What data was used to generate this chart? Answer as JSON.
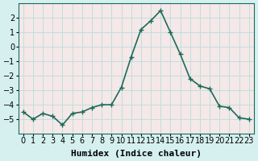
{
  "xlabel": "Humidex (Indice chaleur)",
  "ylabel": "",
  "x_values": [
    0,
    1,
    2,
    3,
    4,
    5,
    6,
    7,
    8,
    9,
    10,
    11,
    12,
    13,
    14,
    15,
    16,
    17,
    18,
    19,
    20,
    21,
    22,
    23
  ],
  "y_values": [
    -4.5,
    -5.0,
    -4.6,
    -4.8,
    -5.4,
    -4.6,
    -4.5,
    -4.2,
    -4.0,
    -4.0,
    -2.8,
    -0.7,
    1.2,
    1.8,
    2.5,
    1.0,
    -0.5,
    -2.2,
    -2.7,
    -2.9,
    -4.1,
    -4.2,
    -4.9,
    -5.0
  ],
  "line_color": "#1a6b5a",
  "marker": "+",
  "marker_size": 4,
  "bg_color": "#d6f0f0",
  "grid_color": "#c0dede",
  "axis_bg": "#f5e8e8",
  "ylim": [
    -6,
    3
  ],
  "yticks": [
    -5,
    -4,
    -3,
    -2,
    -1,
    0,
    1,
    2
  ],
  "xlim": [
    -0.5,
    23.5
  ],
  "xticks": [
    0,
    1,
    2,
    3,
    4,
    5,
    6,
    7,
    8,
    9,
    10,
    11,
    12,
    13,
    14,
    15,
    16,
    17,
    18,
    19,
    20,
    21,
    22,
    23
  ],
  "xlabel_fontsize": 8,
  "tick_fontsize": 7,
  "line_width": 1.2
}
